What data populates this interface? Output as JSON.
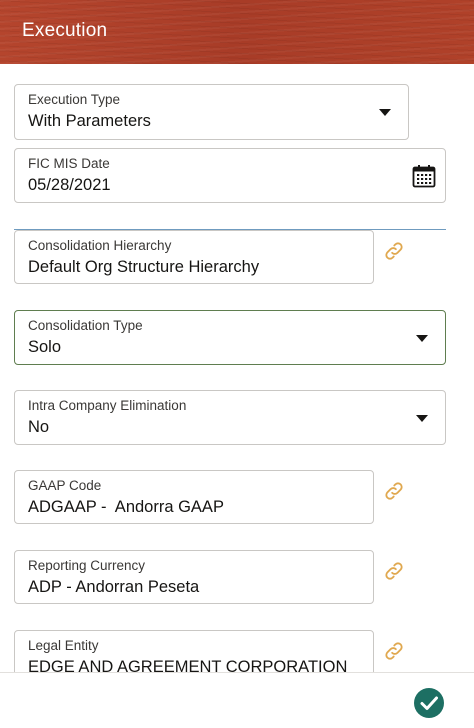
{
  "header": {
    "title": "Execution"
  },
  "fields": {
    "execution_type": {
      "label": "Execution Type",
      "value": "With Parameters"
    },
    "fic_mis_date": {
      "label": "FIC MIS Date",
      "value": "05/28/2021"
    },
    "consolidation_hierarchy": {
      "label": "Consolidation Hierarchy",
      "value": "Default Org Structure Hierarchy"
    },
    "consolidation_type": {
      "label": "Consolidation Type",
      "value": "Solo"
    },
    "intra_company_elimination": {
      "label": "Intra Company Elimination",
      "value": "No"
    },
    "gaap_code": {
      "label": "GAAP Code",
      "value": "ADGAAP -  Andorra GAAP"
    },
    "reporting_currency": {
      "label": "Reporting Currency",
      "value": "ADP - Andorran Peseta"
    },
    "legal_entity": {
      "label": "Legal Entity",
      "value": "EDGE AND AGREEMENT CORPORATION"
    }
  },
  "icons": {
    "dropdown": "chevron-down-icon",
    "calendar": "calendar-icon",
    "link": "link-icon",
    "submit": "check-icon"
  },
  "colors": {
    "header_bg": "#b3432c",
    "link_icon": "#e0a84f",
    "focus_border": "#5f7d4f",
    "submit_bg": "#1d6f63"
  }
}
